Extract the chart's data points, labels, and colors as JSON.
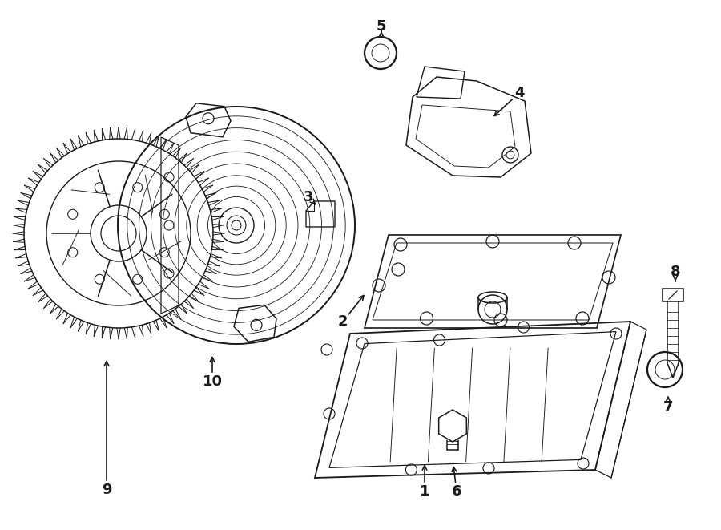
{
  "bg_color": "#ffffff",
  "line_color": "#1a1a1a",
  "lw": 1.1,
  "figsize": [
    9.0,
    6.61
  ],
  "dpi": 100
}
